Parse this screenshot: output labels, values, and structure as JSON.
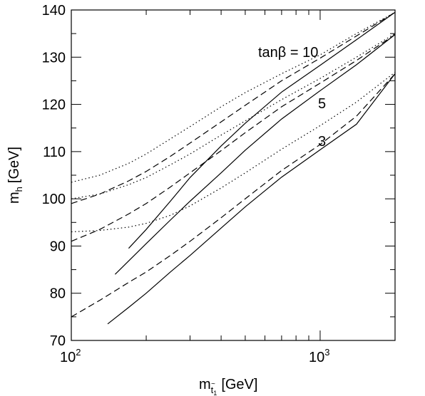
{
  "chart_data": {
    "type": "line",
    "x_scale": "log",
    "xlim": [
      100,
      2000
    ],
    "ylim": [
      70,
      140
    ],
    "x_ticks": [
      {
        "value": 100,
        "base": "10",
        "exp": "2"
      },
      {
        "value": 1000,
        "base": "10",
        "exp": "3"
      }
    ],
    "y_ticks": [
      "70",
      "80",
      "90",
      "100",
      "110",
      "120",
      "130",
      "140"
    ],
    "grid": false,
    "xlabel": {
      "main": "m",
      "sub": "t",
      "sub_accent": "~",
      "sub2": "1",
      "unit": "[GeV]"
    },
    "ylabel": {
      "main": "m",
      "sub": "h",
      "unit": "[GeV]"
    },
    "annotations": [
      "tanβ = 10",
      "5",
      "3"
    ],
    "series": [
      {
        "group": "tanβ = 10",
        "style": "solid",
        "x": [
          170,
          200,
          250,
          300,
          400,
          500,
          700,
          1000,
          1400,
          2000
        ],
        "y": [
          89.5,
          93.5,
          99.5,
          104.5,
          111.2,
          116.0,
          122.6,
          128.3,
          133.7,
          139.5
        ]
      },
      {
        "group": "tanβ = 10",
        "style": "dashed",
        "x": [
          100,
          130,
          170,
          200,
          250,
          300,
          400,
          500,
          700,
          1000,
          1400,
          2000
        ],
        "y": [
          99.0,
          101.0,
          103.8,
          105.8,
          109.0,
          111.8,
          116.3,
          119.8,
          125.0,
          129.8,
          134.5,
          139.5
        ]
      },
      {
        "group": "tanβ = 10",
        "style": "dotted",
        "x": [
          100,
          130,
          170,
          200,
          250,
          300,
          400,
          500,
          700,
          1000,
          1400,
          2000
        ],
        "y": [
          103.5,
          105.0,
          107.5,
          109.5,
          112.7,
          115.3,
          119.5,
          122.5,
          126.5,
          130.5,
          135.0,
          139.5
        ]
      },
      {
        "group": "5",
        "style": "solid",
        "x": [
          150,
          200,
          250,
          300,
          400,
          500,
          700,
          1000,
          1400,
          2000
        ],
        "y": [
          84.0,
          90.5,
          95.5,
          99.5,
          105.5,
          110.3,
          116.9,
          122.9,
          128.4,
          134.8
        ]
      },
      {
        "group": "5",
        "style": "dashed",
        "x": [
          100,
          130,
          170,
          200,
          250,
          300,
          400,
          500,
          700,
          1000,
          1400,
          2000
        ],
        "y": [
          91.0,
          93.5,
          96.8,
          99.0,
          102.5,
          105.5,
          110.2,
          114.0,
          119.5,
          124.5,
          129.3,
          134.8
        ]
      },
      {
        "group": "5",
        "style": "dotted",
        "x": [
          100,
          130,
          170,
          200,
          250,
          300,
          400,
          500,
          700,
          1000,
          1400,
          2000
        ],
        "y": [
          100.0,
          101.0,
          103.0,
          104.5,
          107.2,
          109.5,
          113.5,
          116.5,
          121.0,
          125.5,
          130.0,
          135.0
        ]
      },
      {
        "group": "3",
        "style": "solid",
        "x": [
          140,
          170,
          200,
          250,
          300,
          400,
          500,
          700,
          1000,
          1400,
          2000
        ],
        "y": [
          73.5,
          77.0,
          80.0,
          84.5,
          88.0,
          93.8,
          98.3,
          104.6,
          110.4,
          115.8,
          126.5
        ]
      },
      {
        "group": "3",
        "style": "dashed",
        "x": [
          100,
          130,
          170,
          200,
          250,
          300,
          400,
          500,
          700,
          1000,
          1400,
          2000
        ],
        "y": [
          75.0,
          78.5,
          82.3,
          84.5,
          88.0,
          91.0,
          96.0,
          100.0,
          106.0,
          111.5,
          117.5,
          126.5
        ]
      },
      {
        "group": "3",
        "style": "dotted",
        "x": [
          100,
          130,
          170,
          200,
          250,
          300,
          400,
          500,
          700,
          1000,
          1400,
          2000
        ],
        "y": [
          93.0,
          93.3,
          94.0,
          94.8,
          96.5,
          98.5,
          102.3,
          105.5,
          110.5,
          115.5,
          120.5,
          126.8
        ]
      }
    ]
  }
}
